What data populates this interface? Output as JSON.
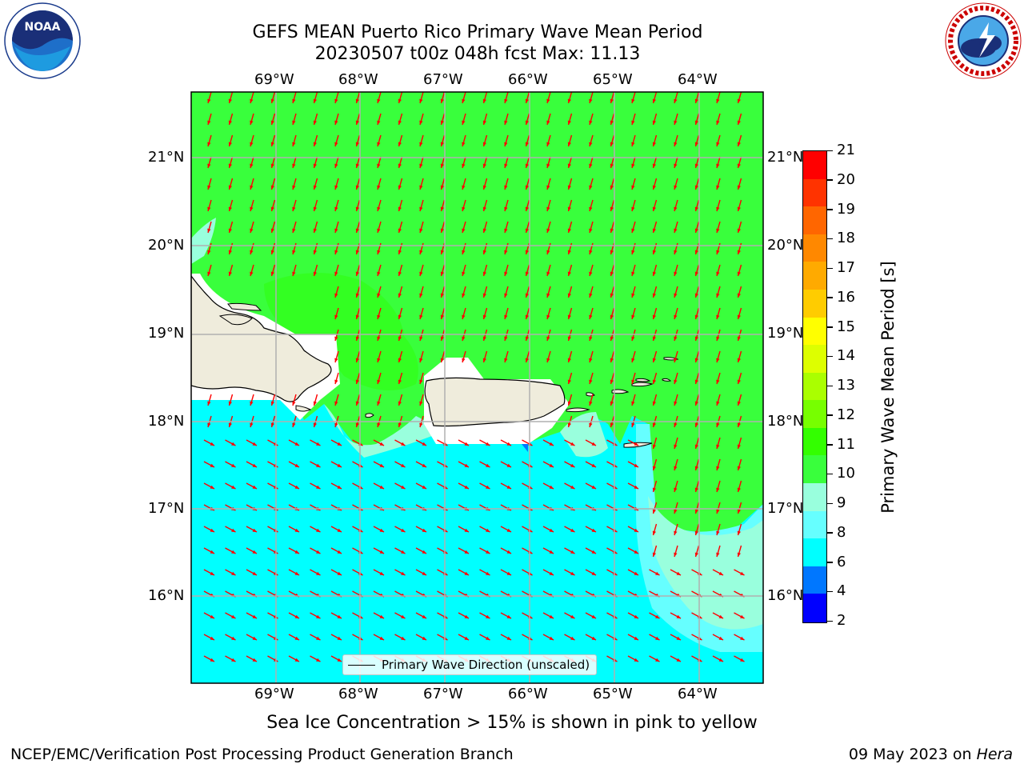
{
  "header": {
    "title_line1": "GEFS MEAN Puerto Rico Primary Wave Mean Period",
    "title_line2": "20230507 t00z 048h fcst   Max: 11.13"
  },
  "logos": {
    "noaa": "NOAA",
    "nws": "NATIONAL WEATHER SERVICE"
  },
  "map": {
    "lon_labels": [
      "69°W",
      "68°W",
      "67°W",
      "66°W",
      "65°W",
      "64°W"
    ],
    "lat_labels": [
      "21°N",
      "20°N",
      "19°N",
      "18°N",
      "17°N",
      "16°N"
    ],
    "legend_label": "Primary Wave Direction (unscaled)",
    "field_colors": {
      "high_green": "#39ff14",
      "green": "#39ff3c",
      "mint": "#99ffdd",
      "aqua": "#66ffff",
      "cyan": "#00ffff",
      "land": "#efecdc",
      "arrow": "#ff0000"
    }
  },
  "colorbar": {
    "label": "Primary Wave Mean Period [s]",
    "ticks": [
      "21",
      "20",
      "19",
      "18",
      "17",
      "16",
      "15",
      "14",
      "13",
      "12",
      "11",
      "10",
      "9",
      "8",
      "6",
      "4",
      "2"
    ],
    "colors_top_to_bottom": [
      "#ff0000",
      "#ff3300",
      "#ff6600",
      "#ff8800",
      "#ffaa00",
      "#ffcc00",
      "#ffff00",
      "#ddff00",
      "#aaff00",
      "#77ff00",
      "#33ff00",
      "#39ff3c",
      "#99ffdd",
      "#66ffff",
      "#00ffff",
      "#0077ff",
      "#0000ff"
    ]
  },
  "caption": "Sea Ice Concentration > 15% is shown in pink to yellow",
  "footer": {
    "left": "NCEP/EMC/Verification Post Processing Product Generation Branch",
    "right_date": "09 May 2023 on ",
    "right_host": "Hera"
  }
}
